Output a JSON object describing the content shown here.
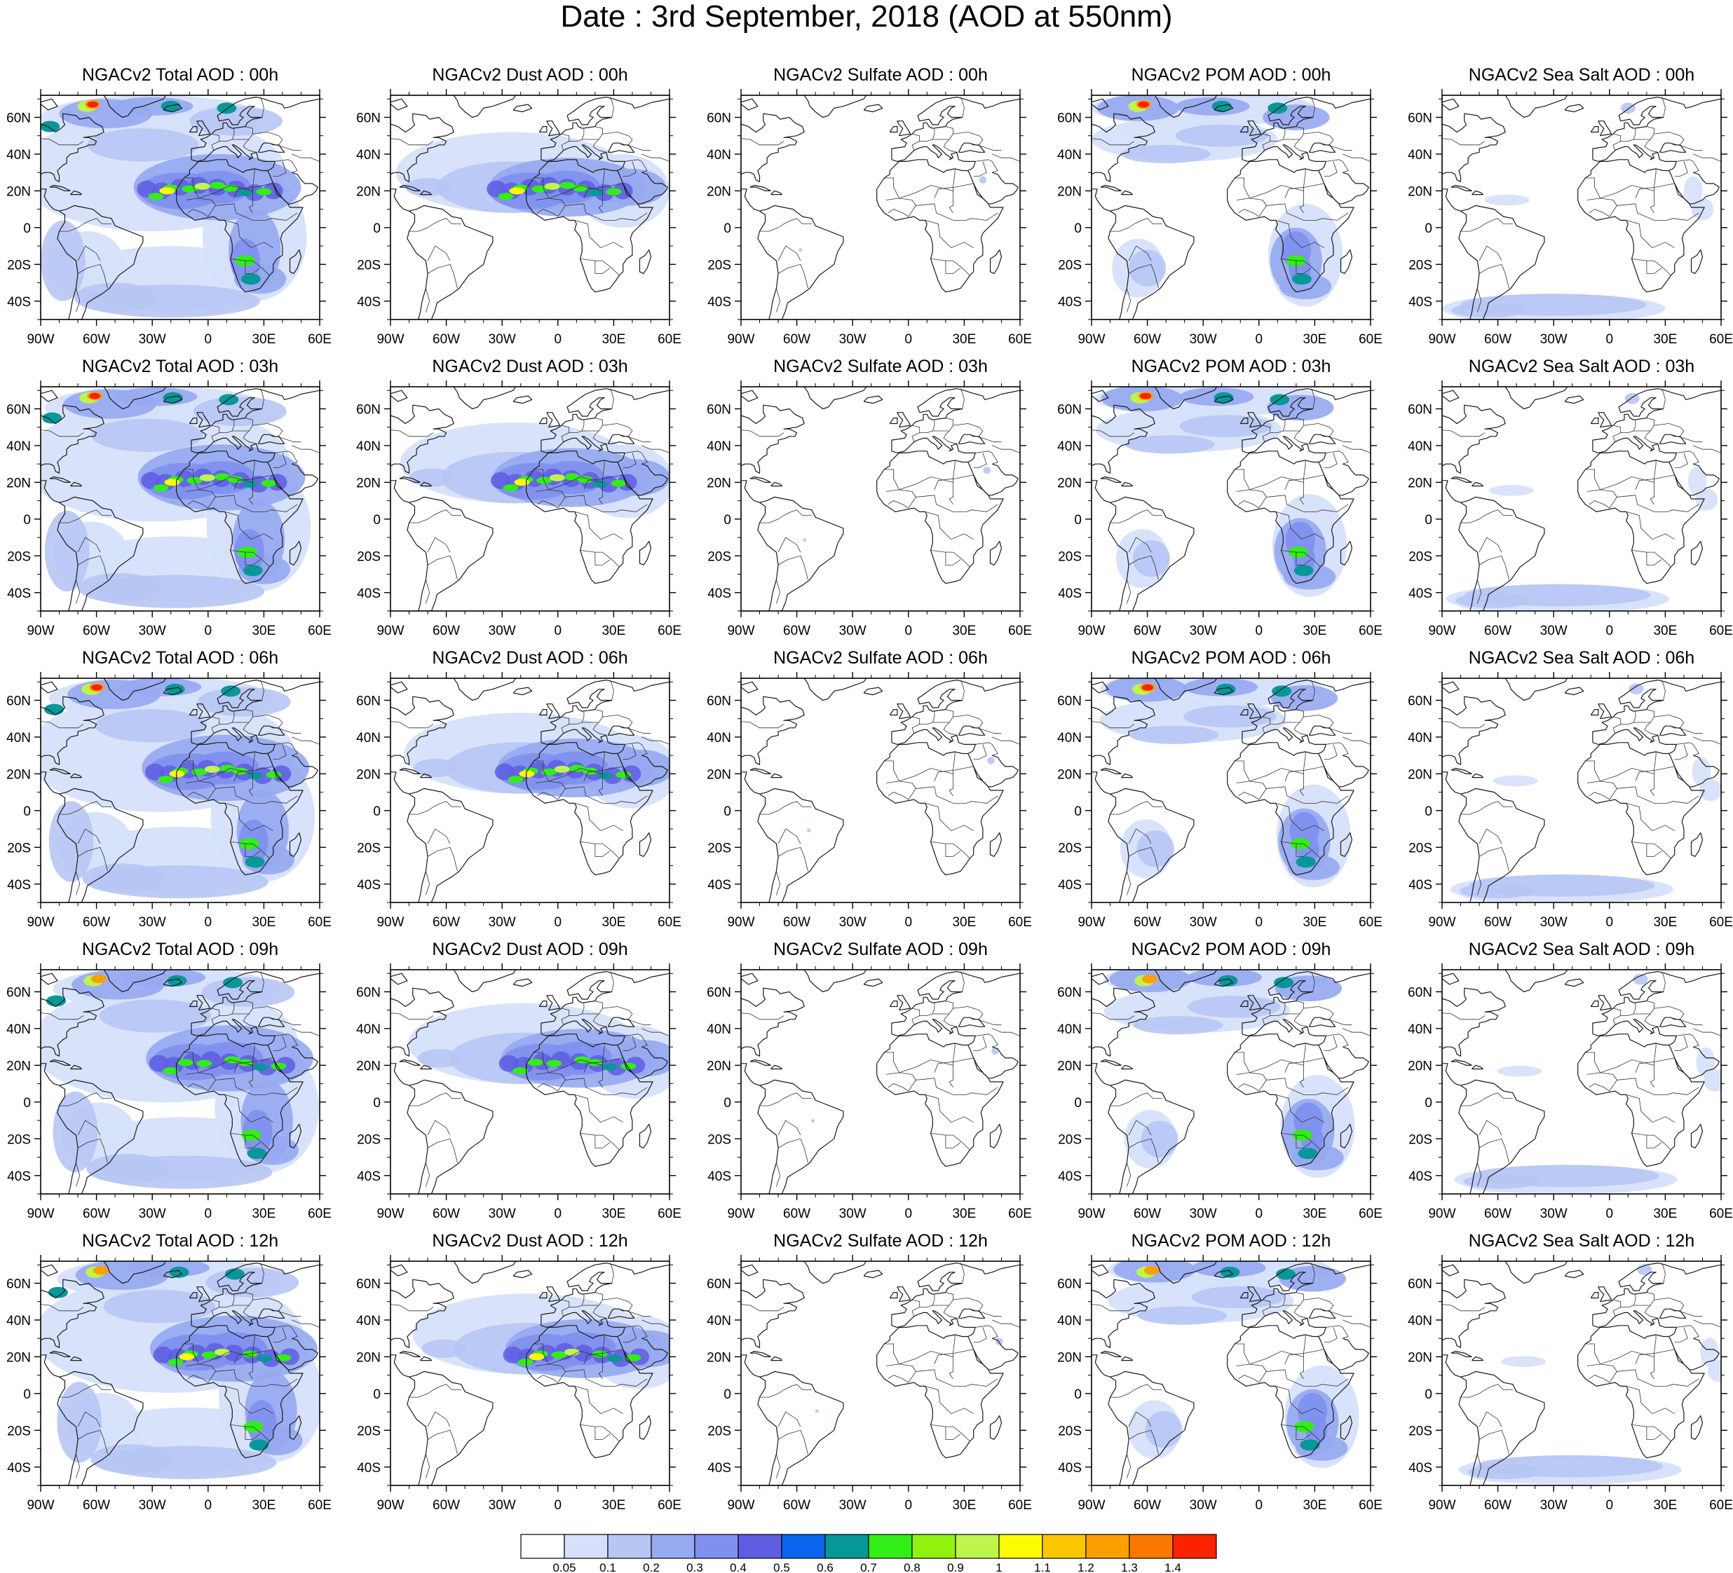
{
  "figure": {
    "title": "Date : 3rd September, 2018 (AOD at 550nm)"
  },
  "axes": {
    "lon_ticks": [
      "90W",
      "60W",
      "30W",
      "0",
      "30E",
      "60E"
    ],
    "lat_ticks": [
      "60N",
      "40N",
      "20N",
      "0",
      "20S",
      "40S"
    ],
    "lon_range": [
      -90,
      60
    ],
    "lat_range": [
      -50,
      72
    ]
  },
  "columns": [
    "total",
    "dust",
    "sulfate",
    "pom",
    "seasalt"
  ],
  "hours": [
    "00h",
    "03h",
    "06h",
    "09h",
    "12h"
  ],
  "panel_titles": [
    [
      "NGACv2 Total AOD : 00h",
      "NGACv2 Dust AOD : 00h",
      "NGACv2 Sulfate AOD : 00h",
      "NGACv2 POM AOD : 00h",
      "NGACv2 Sea Salt AOD : 00h"
    ],
    [
      "NGACv2 Total AOD : 03h",
      "NGACv2 Dust AOD : 03h",
      "NGACv2 Sulfate AOD : 03h",
      "NGACv2 POM AOD : 03h",
      "NGACv2 Sea Salt AOD : 03h"
    ],
    [
      "NGACv2 Total AOD : 06h",
      "NGACv2 Dust AOD : 06h",
      "NGACv2 Sulfate AOD : 06h",
      "NGACv2 POM AOD : 06h",
      "NGACv2 Sea Salt AOD : 06h"
    ],
    [
      "NGACv2 Total AOD : 09h",
      "NGACv2 Dust AOD : 09h",
      "NGACv2 Sulfate AOD : 09h",
      "NGACv2 POM AOD : 09h",
      "NGACv2 Sea Salt  AOD : 09h"
    ],
    [
      "NGACv2 Total AOD  : 12h",
      "NGACv2 Dust AOD : 12h",
      "NGACv2 Sulfate AOD : 12h",
      "NGACv2 POM  AOD : 12h",
      "NGACv2 Sea Salt  AOD : 12h"
    ]
  ],
  "colorbar": {
    "labels": [
      "0.05",
      "0.1",
      "0.2",
      "0.3",
      "0.4",
      "0.5",
      "0.6",
      "0.7",
      "0.8",
      "0.9",
      "1",
      "1.1",
      "1.2",
      "1.3",
      "1.4"
    ],
    "colors": [
      "#ffffff",
      "#d6e0fa",
      "#b7c6f4",
      "#96a9f1",
      "#8090ee",
      "#5e5de2",
      "#0a64ec",
      "#079798",
      "#31ee17",
      "#92f20f",
      "#bef54d",
      "#fbfc00",
      "#fbc600",
      "#fba000",
      "#fb7800",
      "#fb2200"
    ]
  },
  "map_colors": {
    "haze": "#d6e0fa",
    "light": "#b7c6f4",
    "mid": "#96a9f1",
    "strong": "#8090ee",
    "deep": "#5e5de2",
    "teal": "#079798",
    "green": "#31ee17",
    "lime": "#bef54d",
    "yellow": "#fbfc00",
    "orange": "#fba000",
    "red": "#fb2200"
  }
}
